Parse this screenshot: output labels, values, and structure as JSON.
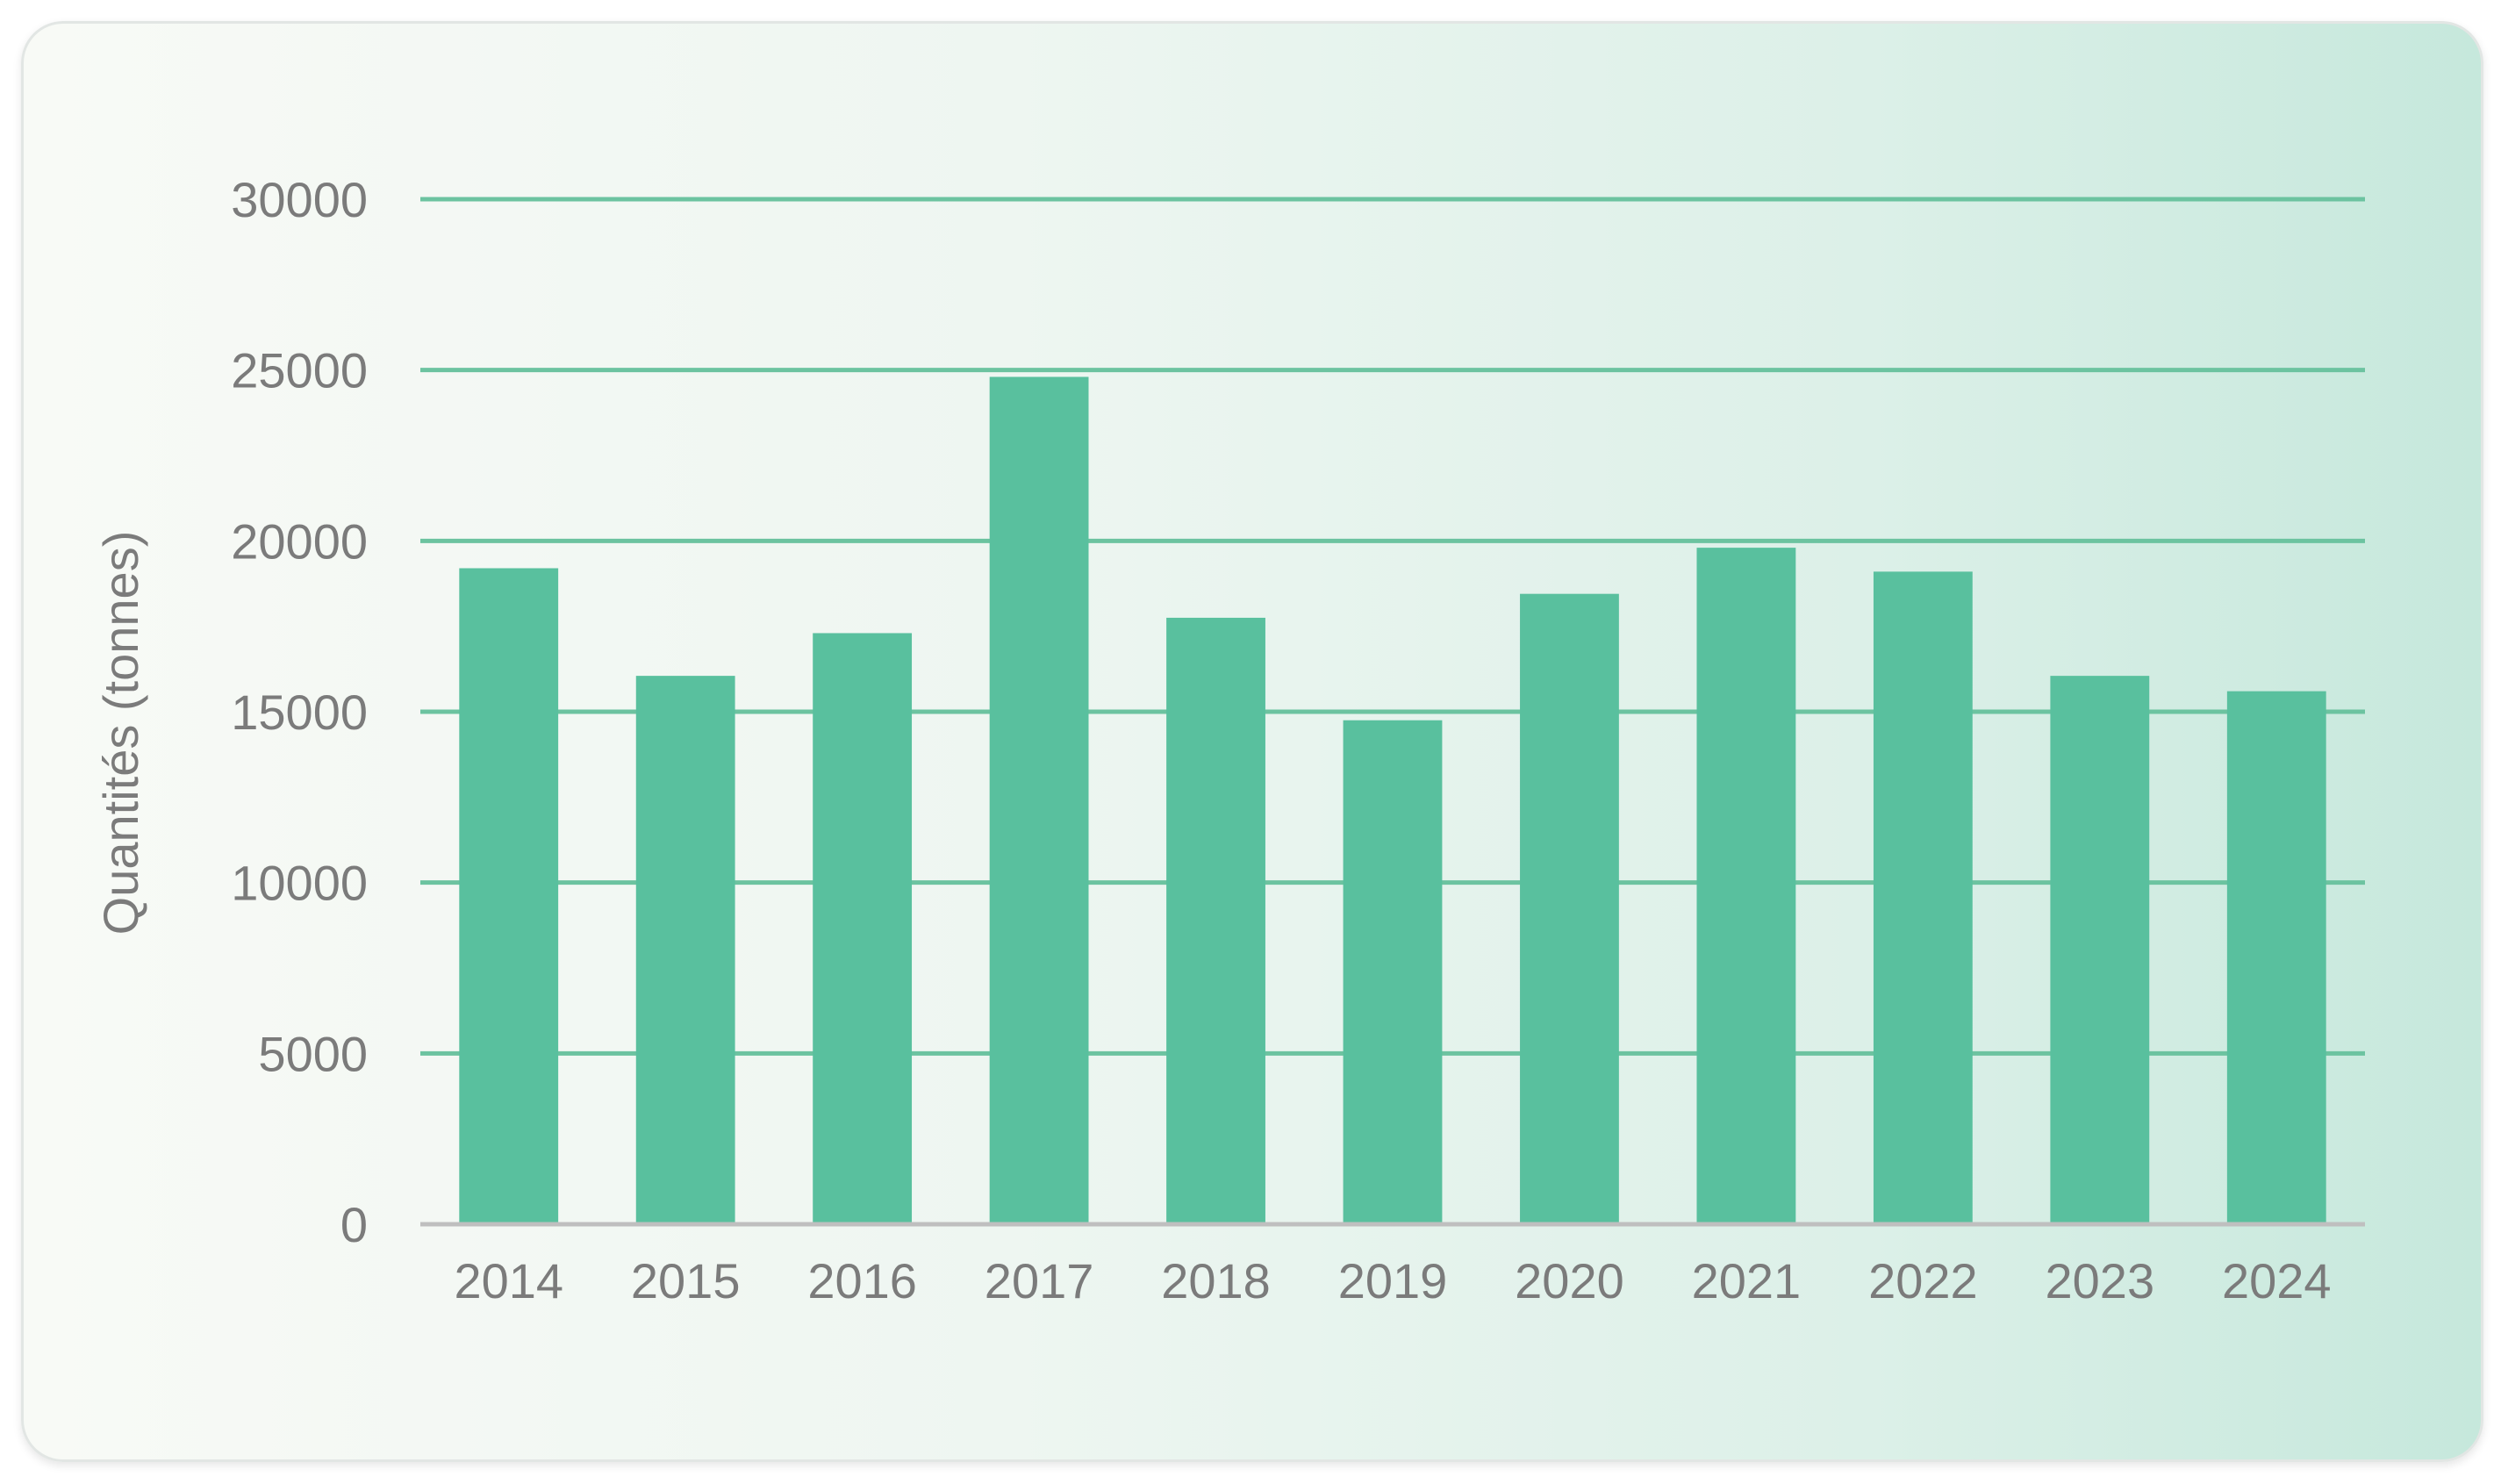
{
  "chart_data": {
    "type": "bar",
    "title": "",
    "xlabel": "",
    "ylabel": "Quantités (tonnes)",
    "categories": [
      "2014",
      "2015",
      "2016",
      "2017",
      "2018",
      "2019",
      "2020",
      "2021",
      "2022",
      "2023",
      "2024"
    ],
    "series": [
      {
        "values": [
          19200,
          16050,
          17300,
          24800,
          17750,
          14750,
          18450,
          19800,
          19100,
          16050,
          15600
        ]
      }
    ],
    "ylim": [
      0,
      30000
    ],
    "yticks": [
      0,
      5000,
      10000,
      15000,
      20000,
      25000,
      30000
    ],
    "grid": true,
    "legend": "none",
    "colors": {
      "bar": "#59c09e",
      "grid": "#6cc3a0",
      "baseline": "#bfbfbf",
      "text": "#7b7b7b"
    }
  }
}
